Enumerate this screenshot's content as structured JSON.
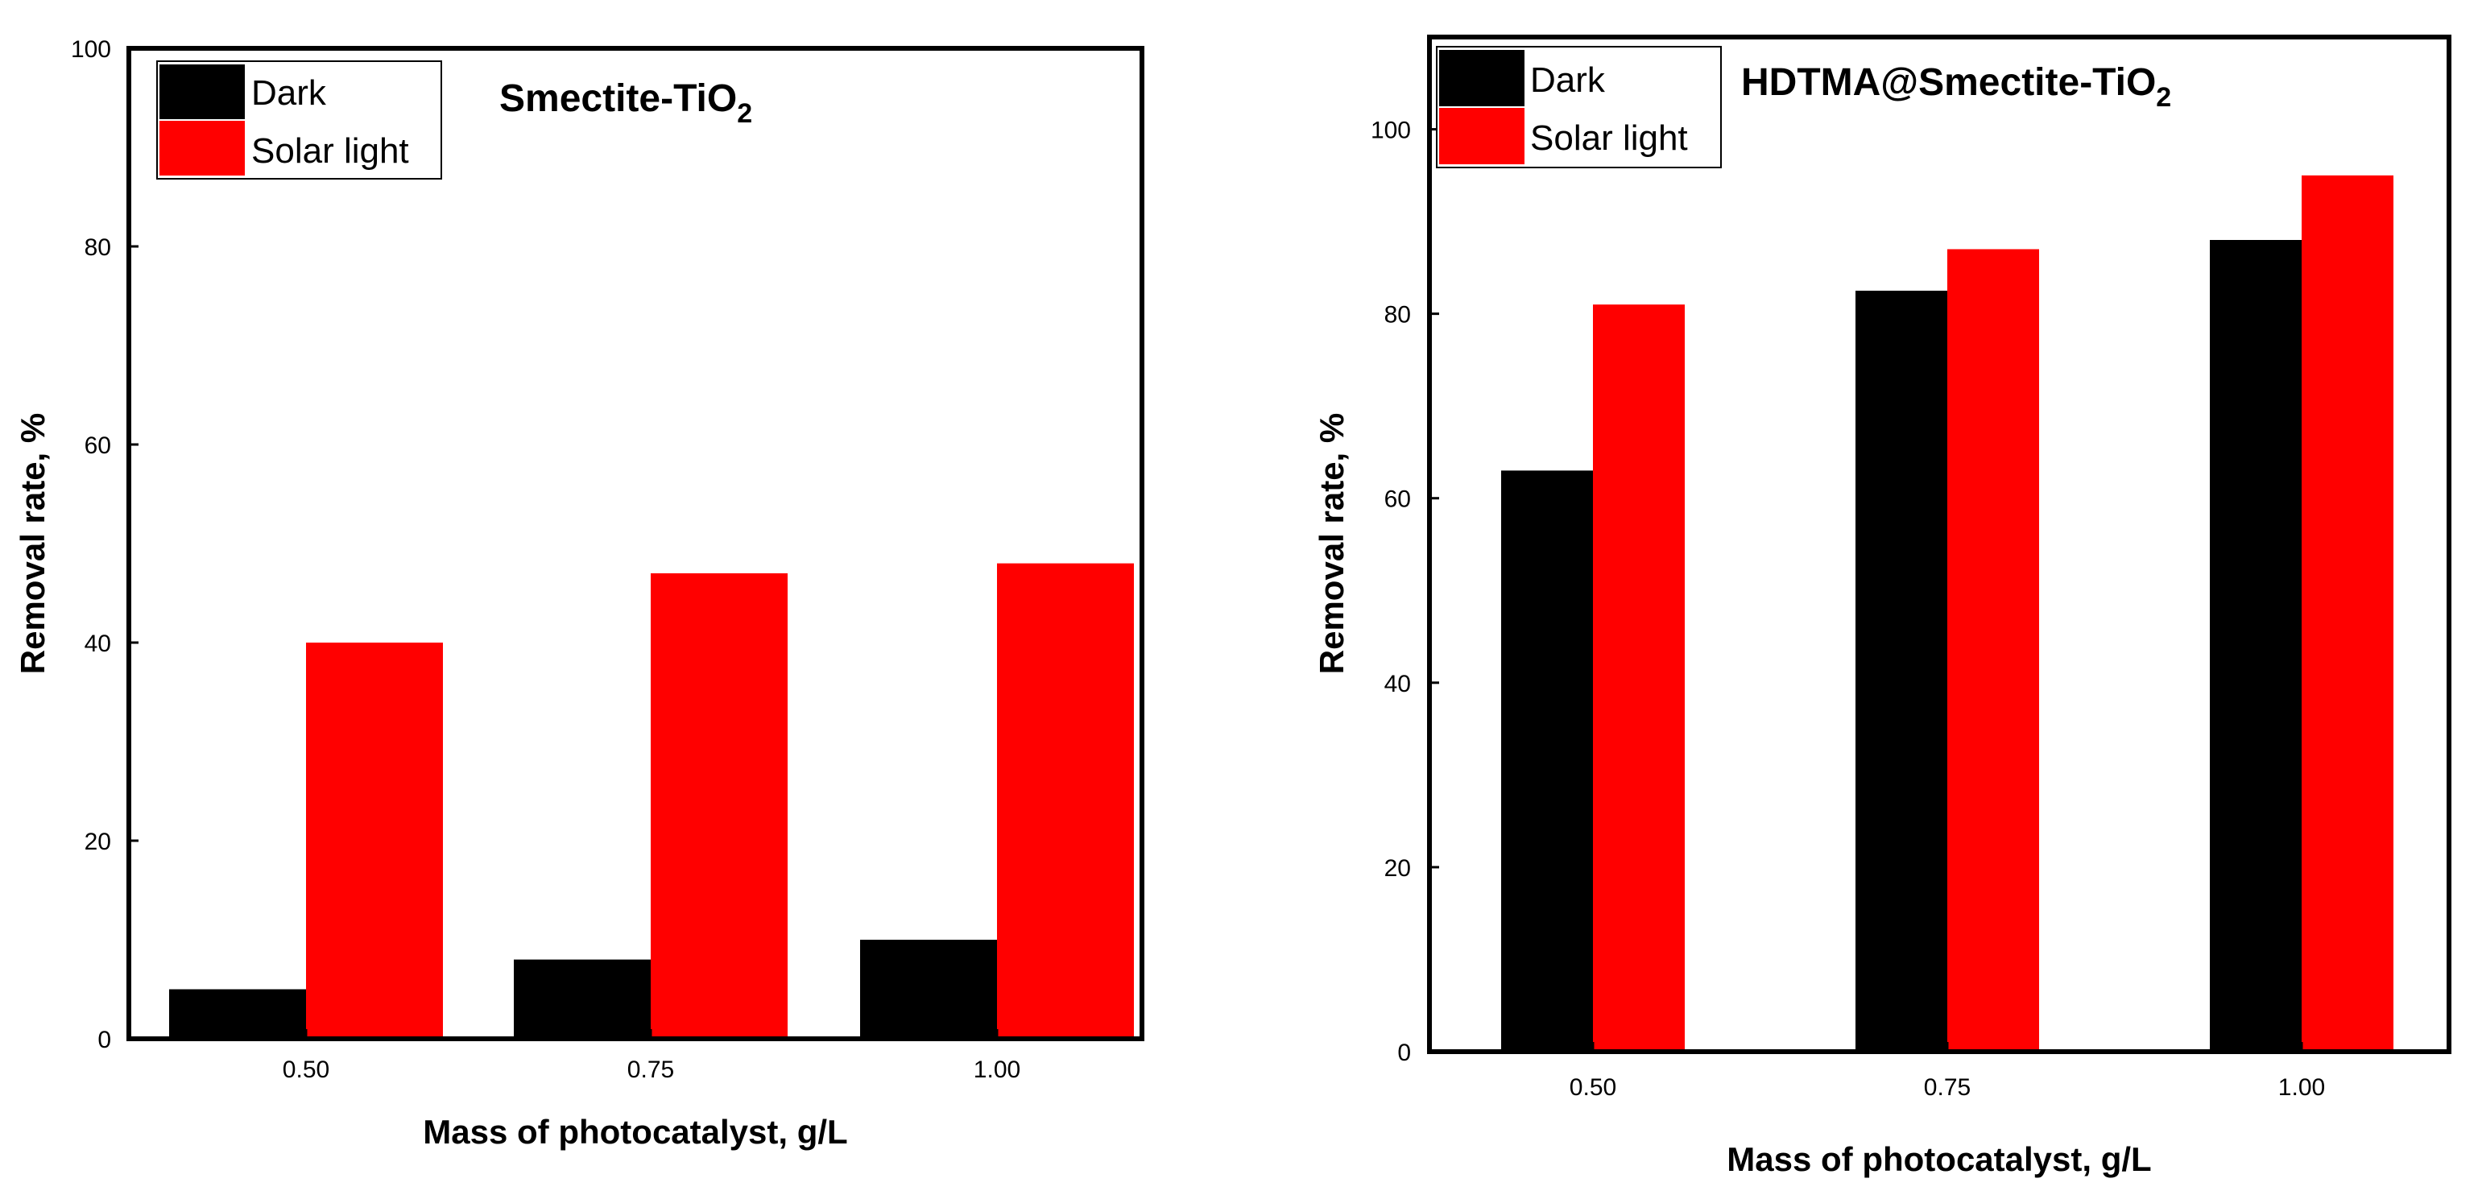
{
  "figure_caption": "",
  "chart_data": [
    {
      "type": "bar",
      "title": "Smectite-TiO",
      "title_subscript": "2",
      "categories": [
        "0.50",
        "0.75",
        "1.00"
      ],
      "series": [
        {
          "name": "Dark",
          "values": [
            5,
            8,
            10
          ],
          "color": "#000000"
        },
        {
          "name": "Solar light",
          "values": [
            40,
            47,
            48
          ],
          "color": "#ff0000"
        }
      ],
      "xlabel": "Mass of photocatalyst, g/L",
      "ylabel": "Removal rate, %",
      "ylim": [
        0,
        100
      ],
      "yticks": [
        0,
        20,
        40,
        60,
        80,
        100
      ],
      "grid": false,
      "legend_position": "top-left"
    },
    {
      "type": "bar",
      "title": "HDTMA@Smectite-TiO",
      "title_subscript": "2",
      "categories": [
        "0.50",
        "0.75",
        "1.00"
      ],
      "series": [
        {
          "name": "Dark",
          "values": [
            63,
            82.5,
            88
          ],
          "color": "#000000"
        },
        {
          "name": "Solar light",
          "values": [
            81,
            87,
            95
          ],
          "color": "#ff0000"
        }
      ],
      "xlabel": "Mass of photocatalyst, g/L",
      "ylabel": "Removal rate, %",
      "ylim": [
        0,
        110
      ],
      "yticks": [
        0,
        20,
        40,
        60,
        80,
        100
      ],
      "grid": false,
      "legend_position": "top-left"
    }
  ]
}
